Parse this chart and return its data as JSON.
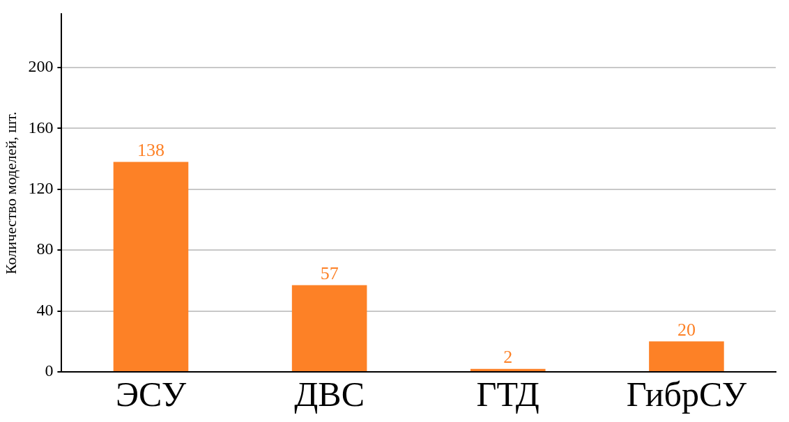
{
  "chart_data": {
    "type": "bar",
    "ylabel": "Количество моделей, шт.",
    "categories": [
      "ЭСУ",
      "ДВС",
      "ГТД",
      "ГибрСУ"
    ],
    "values": [
      138,
      57,
      2,
      20
    ],
    "color": "#fd8126",
    "ylim": [
      0,
      235
    ],
    "yticks": [
      0,
      40,
      80,
      120,
      160,
      200
    ],
    "grid": "y",
    "data_labels": true,
    "legend": false
  }
}
